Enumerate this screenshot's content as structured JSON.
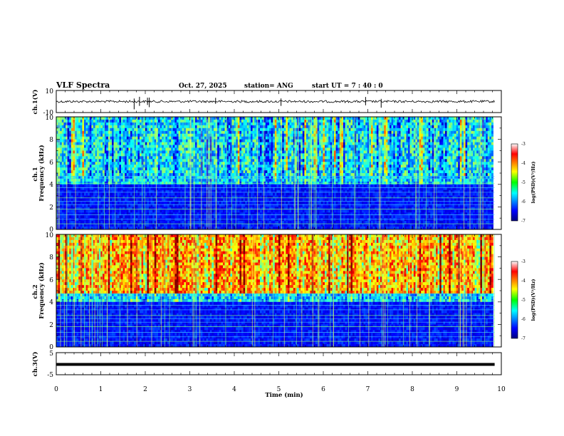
{
  "chart_data": {
    "type": "heatmap",
    "title": "VLF Spectra",
    "header": {
      "date": "Oct. 27, 2025",
      "station": "station= ANG",
      "start": "start  UT =   7 : 40 : 0"
    },
    "xlabel": "Time (min)",
    "xlim": [
      0,
      10
    ],
    "xticks": [
      "0",
      "1",
      "2",
      "3",
      "4",
      "5",
      "6",
      "7",
      "8",
      "9",
      "10"
    ],
    "panels": [
      {
        "id": "ch1-waveform",
        "type": "line",
        "ylabel": "ch.1(V)",
        "ylim": [
          -10,
          10
        ],
        "yticks": [
          {
            "value": 10,
            "label": "10"
          },
          {
            "value": -10,
            "label": "-10"
          }
        ],
        "baseline": 0
      },
      {
        "id": "ch1-spectrogram",
        "type": "heatmap",
        "ylabel": "ch.1\nFrequency (kHz)",
        "ylim": [
          0,
          10
        ],
        "yticks": [
          "0",
          "2",
          "4",
          "6",
          "8",
          "10"
        ],
        "colorbar": {
          "label": "log(PSD)(V²/Hz)",
          "range": [
            -7,
            -3
          ],
          "ticks": [
            "-3",
            "-4",
            "-5",
            "-6",
            "-7"
          ]
        }
      },
      {
        "id": "ch2-spectrogram",
        "type": "heatmap",
        "ylabel": "ch.2\nFrequency (kHz)",
        "ylim": [
          0,
          10
        ],
        "yticks": [
          "0",
          "2",
          "4",
          "6",
          "8",
          "10"
        ],
        "colorbar": {
          "label": "log(PSD)(V²/Hz)",
          "range": [
            -7,
            -3
          ],
          "ticks": [
            "-3",
            "-4",
            "-5",
            "-6",
            "-7"
          ]
        }
      },
      {
        "id": "ch3-waveform",
        "type": "line",
        "ylabel": "ch.3(V)",
        "ylim": [
          -5,
          5
        ],
        "yticks": [
          {
            "value": 5,
            "label": "5"
          },
          {
            "value": -5,
            "label": "-5"
          }
        ],
        "baseline": 0
      }
    ],
    "data_end_min": 9.85
  }
}
